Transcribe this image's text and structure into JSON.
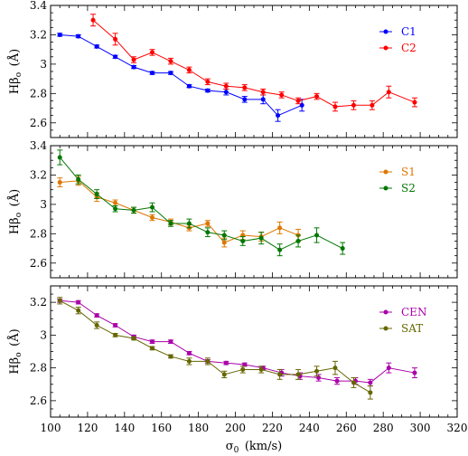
{
  "chart_data": [
    {
      "type": "line",
      "ylabel": "Hβ",
      "ylabel_sub": "o",
      "ylabel_unit": "(Å)",
      "ylim": [
        2.5,
        3.4
      ],
      "yticks": [
        2.6,
        2.8,
        3,
        3.2,
        3.4
      ],
      "ytick_labels": [
        "2.6",
        "2.8",
        "3",
        "3.2",
        "3.4"
      ],
      "xlim": [
        100,
        320
      ],
      "legend_position": "top-right",
      "series": [
        {
          "name": "C1",
          "color": "#0000ff",
          "x": [
            105,
            115,
            125,
            135,
            145,
            155,
            165,
            175,
            185,
            195,
            205,
            215,
            223,
            236
          ],
          "y": [
            3.2,
            3.19,
            3.12,
            3.05,
            2.98,
            2.94,
            2.94,
            2.85,
            2.82,
            2.81,
            2.76,
            2.76,
            2.65,
            2.72
          ],
          "err": [
            0.01,
            0.01,
            0.01,
            0.01,
            0.01,
            0.01,
            0.01,
            0.01,
            0.01,
            0.02,
            0.02,
            0.03,
            0.04,
            0.04
          ]
        },
        {
          "name": "C2",
          "color": "#ff0000",
          "x": [
            123,
            135,
            145,
            155,
            165,
            175,
            185,
            195,
            205,
            215,
            225,
            234,
            244,
            254,
            264,
            274,
            283,
            297
          ],
          "y": [
            3.3,
            3.17,
            3.03,
            3.08,
            3.02,
            2.96,
            2.88,
            2.85,
            2.84,
            2.81,
            2.79,
            2.75,
            2.78,
            2.71,
            2.72,
            2.72,
            2.81,
            2.74
          ],
          "err": [
            0.04,
            0.04,
            0.02,
            0.02,
            0.02,
            0.02,
            0.02,
            0.02,
            0.02,
            0.02,
            0.02,
            0.02,
            0.02,
            0.03,
            0.03,
            0.03,
            0.04,
            0.03
          ]
        }
      ]
    },
    {
      "type": "line",
      "ylabel": "Hβ",
      "ylabel_sub": "o",
      "ylabel_unit": "(Å)",
      "ylim": [
        2.5,
        3.4
      ],
      "yticks": [
        2.6,
        2.8,
        3,
        3.2,
        3.4
      ],
      "ytick_labels": [
        "2.6",
        "2.8",
        "3",
        "3.2",
        "3.4"
      ],
      "xlim": [
        100,
        320
      ],
      "legend_position": "top-right",
      "series": [
        {
          "name": "S1",
          "color": "#dd7700",
          "x": [
            105,
            115,
            125,
            135,
            145,
            155,
            165,
            175,
            185,
            194,
            204,
            214,
            224,
            234
          ],
          "y": [
            3.15,
            3.16,
            3.05,
            3.01,
            2.96,
            2.91,
            2.88,
            2.84,
            2.87,
            2.74,
            2.79,
            2.78,
            2.84,
            2.79
          ],
          "err": [
            0.03,
            0.03,
            0.03,
            0.02,
            0.02,
            0.02,
            0.02,
            0.02,
            0.02,
            0.03,
            0.03,
            0.03,
            0.04,
            0.04
          ]
        },
        {
          "name": "S2",
          "color": "#007700",
          "x": [
            105,
            115,
            125,
            135,
            145,
            155,
            165,
            175,
            185,
            194,
            204,
            214,
            224,
            234,
            244,
            258
          ],
          "y": [
            3.32,
            3.17,
            3.07,
            2.97,
            2.96,
            2.98,
            2.87,
            2.87,
            2.81,
            2.79,
            2.75,
            2.77,
            2.69,
            2.75,
            2.79,
            2.7
          ],
          "err": [
            0.05,
            0.03,
            0.03,
            0.02,
            0.02,
            0.03,
            0.02,
            0.03,
            0.03,
            0.03,
            0.03,
            0.04,
            0.04,
            0.04,
            0.05,
            0.04
          ]
        }
      ]
    },
    {
      "type": "line",
      "ylabel": "Hβ",
      "ylabel_sub": "o",
      "ylabel_unit": "(Å)",
      "xlabel": "σ",
      "xlabel_sub": "0",
      "xlabel_unit": "(km/s)",
      "ylim": [
        2.5,
        3.3
      ],
      "yticks": [
        2.6,
        2.8,
        3,
        3.2
      ],
      "ytick_labels": [
        "2.6",
        "2.8",
        "3",
        "3.2"
      ],
      "xlim": [
        100,
        320
      ],
      "xticks": [
        100,
        120,
        140,
        160,
        180,
        200,
        220,
        240,
        260,
        280,
        300,
        320
      ],
      "xtick_labels": [
        "100",
        "120",
        "140",
        "160",
        "180",
        "200",
        "220",
        "240",
        "260",
        "280",
        "300",
        "320"
      ],
      "legend_position": "top-right",
      "series": [
        {
          "name": "CEN",
          "color": "#aa00aa",
          "x": [
            105,
            115,
            125,
            135,
            145,
            155,
            165,
            175,
            185,
            195,
            205,
            215,
            225,
            235,
            245,
            255,
            265,
            273,
            283,
            297
          ],
          "y": [
            3.21,
            3.2,
            3.12,
            3.06,
            2.99,
            2.96,
            2.96,
            2.89,
            2.84,
            2.83,
            2.82,
            2.8,
            2.77,
            2.75,
            2.74,
            2.72,
            2.72,
            2.71,
            2.8,
            2.77
          ],
          "err": [
            0.01,
            0.01,
            0.01,
            0.01,
            0.01,
            0.01,
            0.01,
            0.01,
            0.01,
            0.01,
            0.01,
            0.01,
            0.02,
            0.02,
            0.02,
            0.02,
            0.02,
            0.02,
            0.03,
            0.03
          ]
        },
        {
          "name": "SAT",
          "color": "#666600",
          "x": [
            105,
            115,
            125,
            135,
            145,
            155,
            165,
            175,
            185,
            194,
            204,
            214,
            224,
            234,
            244,
            254,
            264,
            273
          ],
          "y": [
            3.21,
            3.15,
            3.06,
            3.0,
            2.98,
            2.92,
            2.87,
            2.84,
            2.84,
            2.76,
            2.79,
            2.79,
            2.76,
            2.76,
            2.78,
            2.8,
            2.71,
            2.65
          ],
          "err": [
            0.02,
            0.02,
            0.02,
            0.01,
            0.01,
            0.01,
            0.01,
            0.02,
            0.02,
            0.02,
            0.02,
            0.02,
            0.03,
            0.03,
            0.03,
            0.04,
            0.03,
            0.04
          ]
        }
      ]
    }
  ]
}
